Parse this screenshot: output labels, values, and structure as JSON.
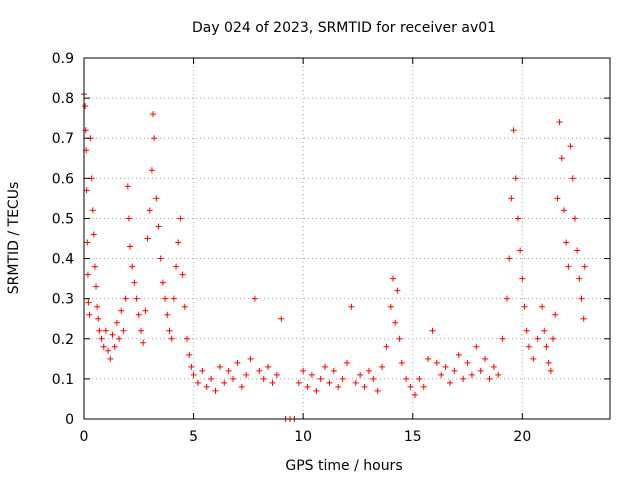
{
  "chart_data": {
    "type": "scatter",
    "title": "Day 024 of 2023, SRMTID for receiver av01",
    "xlabel": "GPS time / hours",
    "ylabel": "SRMTID / TECUs",
    "xlim": [
      0,
      24
    ],
    "ylim": [
      0,
      0.9
    ],
    "xticks": [
      0,
      5,
      10,
      15,
      20
    ],
    "xtick_labels": [
      "0",
      "5",
      "10",
      "15",
      "20"
    ],
    "yticks": [
      0,
      0.1,
      0.2,
      0.3,
      0.4,
      0.5,
      0.6,
      0.7,
      0.8,
      0.9
    ],
    "ytick_labels": [
      "0",
      "0.1",
      "0.2",
      "0.3",
      "0.4",
      "0.5",
      "0.6",
      "0.7",
      "0.8",
      "0.9"
    ],
    "grid": true,
    "marker": "+",
    "color": "#ff0000",
    "series": [
      {
        "name": "SRMTID",
        "points": [
          [
            0.0,
            0.81
          ],
          [
            0.05,
            0.78
          ],
          [
            0.08,
            0.72
          ],
          [
            0.1,
            0.67
          ],
          [
            0.12,
            0.57
          ],
          [
            0.15,
            0.44
          ],
          [
            0.18,
            0.36
          ],
          [
            0.2,
            0.29
          ],
          [
            0.25,
            0.26
          ],
          [
            0.3,
            0.7
          ],
          [
            0.35,
            0.6
          ],
          [
            0.4,
            0.52
          ],
          [
            0.45,
            0.46
          ],
          [
            0.5,
            0.38
          ],
          [
            0.55,
            0.33
          ],
          [
            0.6,
            0.28
          ],
          [
            0.65,
            0.25
          ],
          [
            0.7,
            0.22
          ],
          [
            0.8,
            0.2
          ],
          [
            0.9,
            0.18
          ],
          [
            1.0,
            0.22
          ],
          [
            1.1,
            0.17
          ],
          [
            1.2,
            0.15
          ],
          [
            1.3,
            0.21
          ],
          [
            1.4,
            0.18
          ],
          [
            1.5,
            0.24
          ],
          [
            1.6,
            0.2
          ],
          [
            1.7,
            0.27
          ],
          [
            1.8,
            0.22
          ],
          [
            1.9,
            0.3
          ],
          [
            2.0,
            0.58
          ],
          [
            2.05,
            0.5
          ],
          [
            2.1,
            0.43
          ],
          [
            2.2,
            0.38
          ],
          [
            2.3,
            0.34
          ],
          [
            2.4,
            0.3
          ],
          [
            2.5,
            0.26
          ],
          [
            2.6,
            0.22
          ],
          [
            2.7,
            0.19
          ],
          [
            2.8,
            0.27
          ],
          [
            2.9,
            0.45
          ],
          [
            3.0,
            0.52
          ],
          [
            3.1,
            0.62
          ],
          [
            3.15,
            0.76
          ],
          [
            3.2,
            0.7
          ],
          [
            3.3,
            0.55
          ],
          [
            3.4,
            0.48
          ],
          [
            3.5,
            0.4
          ],
          [
            3.6,
            0.34
          ],
          [
            3.7,
            0.3
          ],
          [
            3.8,
            0.26
          ],
          [
            3.9,
            0.22
          ],
          [
            4.0,
            0.2
          ],
          [
            4.1,
            0.3
          ],
          [
            4.2,
            0.38
          ],
          [
            4.3,
            0.44
          ],
          [
            4.4,
            0.5
          ],
          [
            4.5,
            0.36
          ],
          [
            4.6,
            0.28
          ],
          [
            4.7,
            0.2
          ],
          [
            4.8,
            0.16
          ],
          [
            4.9,
            0.13
          ],
          [
            5.0,
            0.11
          ],
          [
            5.2,
            0.09
          ],
          [
            5.4,
            0.12
          ],
          [
            5.6,
            0.08
          ],
          [
            5.8,
            0.1
          ],
          [
            6.0,
            0.07
          ],
          [
            6.2,
            0.13
          ],
          [
            6.4,
            0.09
          ],
          [
            6.6,
            0.12
          ],
          [
            6.8,
            0.1
          ],
          [
            7.0,
            0.14
          ],
          [
            7.2,
            0.08
          ],
          [
            7.4,
            0.11
          ],
          [
            7.6,
            0.15
          ],
          [
            7.8,
            0.3
          ],
          [
            8.0,
            0.12
          ],
          [
            8.2,
            0.1
          ],
          [
            8.4,
            0.13
          ],
          [
            8.6,
            0.09
          ],
          [
            8.8,
            0.11
          ],
          [
            9.0,
            0.25
          ],
          [
            9.2,
            0.0
          ],
          [
            9.4,
            0.0
          ],
          [
            9.6,
            0.0
          ],
          [
            9.8,
            0.09
          ],
          [
            10.0,
            0.12
          ],
          [
            10.2,
            0.08
          ],
          [
            10.4,
            0.11
          ],
          [
            10.6,
            0.07
          ],
          [
            10.8,
            0.1
          ],
          [
            11.0,
            0.13
          ],
          [
            11.2,
            0.09
          ],
          [
            11.4,
            0.12
          ],
          [
            11.6,
            0.08
          ],
          [
            11.8,
            0.1
          ],
          [
            12.0,
            0.14
          ],
          [
            12.2,
            0.28
          ],
          [
            12.4,
            0.09
          ],
          [
            12.6,
            0.11
          ],
          [
            12.8,
            0.08
          ],
          [
            13.0,
            0.12
          ],
          [
            13.2,
            0.1
          ],
          [
            13.4,
            0.07
          ],
          [
            13.6,
            0.13
          ],
          [
            13.8,
            0.18
          ],
          [
            14.0,
            0.28
          ],
          [
            14.1,
            0.35
          ],
          [
            14.2,
            0.24
          ],
          [
            14.3,
            0.32
          ],
          [
            14.4,
            0.2
          ],
          [
            14.5,
            0.14
          ],
          [
            14.7,
            0.1
          ],
          [
            14.9,
            0.08
          ],
          [
            15.1,
            0.06
          ],
          [
            15.3,
            0.1
          ],
          [
            15.5,
            0.08
          ],
          [
            15.7,
            0.15
          ],
          [
            15.9,
            0.22
          ],
          [
            16.1,
            0.14
          ],
          [
            16.3,
            0.11
          ],
          [
            16.5,
            0.13
          ],
          [
            16.7,
            0.09
          ],
          [
            16.9,
            0.12
          ],
          [
            17.1,
            0.16
          ],
          [
            17.3,
            0.1
          ],
          [
            17.5,
            0.14
          ],
          [
            17.7,
            0.11
          ],
          [
            17.9,
            0.18
          ],
          [
            18.1,
            0.12
          ],
          [
            18.3,
            0.15
          ],
          [
            18.5,
            0.1
          ],
          [
            18.7,
            0.13
          ],
          [
            18.9,
            0.11
          ],
          [
            19.1,
            0.2
          ],
          [
            19.3,
            0.3
          ],
          [
            19.4,
            0.4
          ],
          [
            19.5,
            0.55
          ],
          [
            19.6,
            0.72
          ],
          [
            19.7,
            0.6
          ],
          [
            19.8,
            0.5
          ],
          [
            19.9,
            0.42
          ],
          [
            20.0,
            0.35
          ],
          [
            20.1,
            0.28
          ],
          [
            20.2,
            0.22
          ],
          [
            20.3,
            0.18
          ],
          [
            20.5,
            0.15
          ],
          [
            20.7,
            0.2
          ],
          [
            20.9,
            0.28
          ],
          [
            21.0,
            0.22
          ],
          [
            21.1,
            0.18
          ],
          [
            21.2,
            0.14
          ],
          [
            21.3,
            0.12
          ],
          [
            21.4,
            0.2
          ],
          [
            21.5,
            0.26
          ],
          [
            21.6,
            0.55
          ],
          [
            21.7,
            0.74
          ],
          [
            21.8,
            0.65
          ],
          [
            21.9,
            0.52
          ],
          [
            22.0,
            0.44
          ],
          [
            22.1,
            0.38
          ],
          [
            22.2,
            0.68
          ],
          [
            22.3,
            0.6
          ],
          [
            22.4,
            0.5
          ],
          [
            22.5,
            0.42
          ],
          [
            22.6,
            0.35
          ],
          [
            22.7,
            0.3
          ],
          [
            22.8,
            0.25
          ],
          [
            22.85,
            0.38
          ]
        ]
      }
    ]
  }
}
